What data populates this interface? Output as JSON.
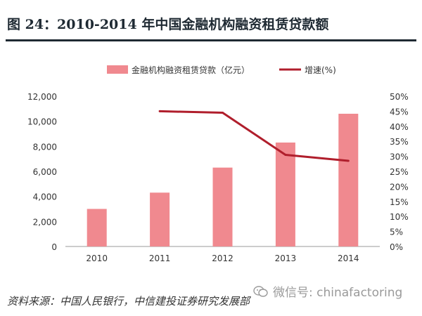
{
  "title": "图 24：2010-2014 年中国金融机构融资租赁贷款额",
  "source": "资料来源：中国人民银行，中信建投证券研究发展部",
  "watermark": "微信号: chinafactoring",
  "colors": {
    "bar": "#f0898f",
    "line": "#b01e2c",
    "axis": "#999999",
    "text": "#333333"
  },
  "chart_data": {
    "type": "bar",
    "categories": [
      "2010",
      "2011",
      "2012",
      "2013",
      "2014"
    ],
    "series": [
      {
        "name": "金融机构融资租赁贷款（亿元）",
        "type": "bar",
        "axis": "left",
        "values": [
          3000,
          4300,
          6300,
          8300,
          10600
        ]
      },
      {
        "name": "增速(%)",
        "type": "line",
        "axis": "right",
        "values": [
          null,
          45,
          44.5,
          30.5,
          28.5
        ]
      }
    ],
    "ylim_left": [
      0,
      12000
    ],
    "yticks_left": [
      "0",
      "2,000",
      "4,000",
      "6,000",
      "8,000",
      "10,000",
      "12,000"
    ],
    "ylim_right": [
      0,
      50
    ],
    "yticks_right": [
      "0%",
      "5%",
      "10%",
      "15%",
      "20%",
      "25%",
      "30%",
      "35%",
      "40%",
      "45%",
      "50%"
    ],
    "legend_position": "top",
    "grid": false
  }
}
